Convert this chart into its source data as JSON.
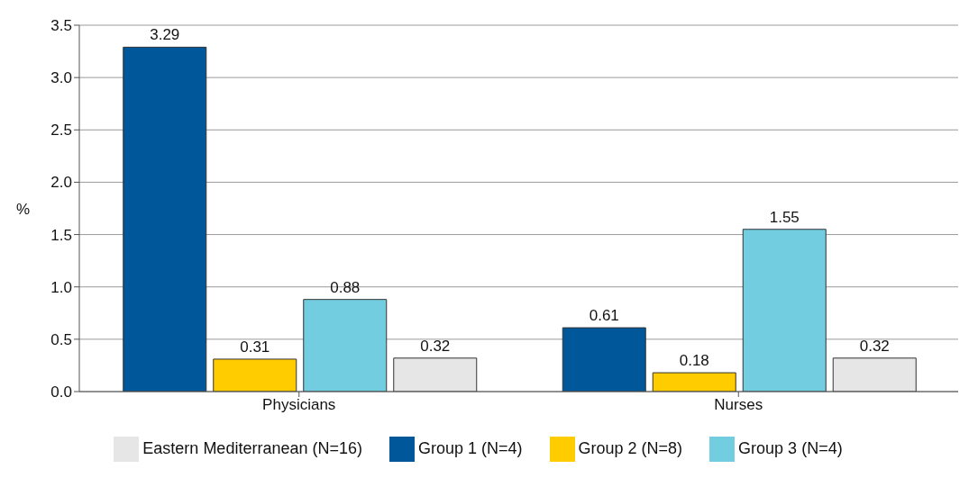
{
  "chart_data": {
    "type": "bar",
    "ylabel": "%",
    "categories": [
      "Physicians",
      "Nurses"
    ],
    "series": [
      {
        "name": "Group 1 (N=4)",
        "color": "#00579a",
        "values": [
          3.29,
          0.61
        ]
      },
      {
        "name": "Group 2 (N=8)",
        "color": "#ffcc00",
        "values": [
          0.31,
          0.18
        ]
      },
      {
        "name": "Group 3 (N=4)",
        "color": "#73cde0",
        "values": [
          0.88,
          1.55
        ]
      },
      {
        "name": "Eastern Mediterranean (N=16)",
        "color": "#e6e6e6",
        "values": [
          0.32,
          0.32
        ]
      }
    ],
    "ylim": [
      0,
      3.5
    ],
    "yticks": [
      {
        "value": 0,
        "label": "0.0"
      },
      {
        "value": 0.5,
        "label": "0.5"
      },
      {
        "value": 1,
        "label": "1.0"
      },
      {
        "value": 1.5,
        "label": "1.5"
      },
      {
        "value": 2,
        "label": "2.0"
      },
      {
        "value": 2.5,
        "label": "2.5"
      },
      {
        "value": 3,
        "label": "3.0"
      },
      {
        "value": 3.5,
        "label": "3.5"
      }
    ],
    "grid": "y",
    "legend": "bottom",
    "data_labels": true
  }
}
